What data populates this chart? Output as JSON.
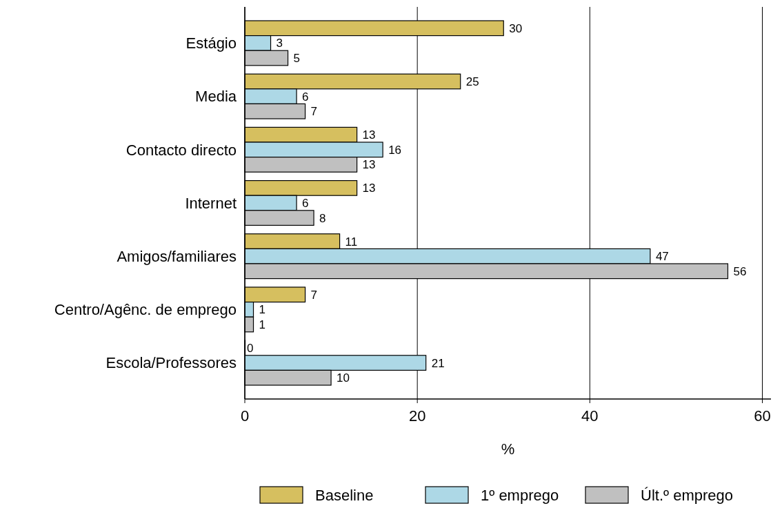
{
  "chart_data": {
    "type": "bar",
    "orientation": "horizontal",
    "categories": [
      "Estágio",
      "Media",
      "Contacto directo",
      "Internet",
      "Amigos/familiares",
      "Centro/Agênc. de emprego",
      "Escola/Professores"
    ],
    "series": [
      {
        "name": "Baseline",
        "color": "#d6bf5f",
        "values": [
          30,
          25,
          13,
          13,
          11,
          7,
          0
        ]
      },
      {
        "name": "1º emprego",
        "color": "#add8e6",
        "values": [
          3,
          6,
          16,
          6,
          47,
          1,
          21
        ]
      },
      {
        "name": "Últ.º emprego",
        "color": "#c0c0c0",
        "values": [
          5,
          7,
          13,
          8,
          56,
          1,
          10
        ]
      }
    ],
    "xlim": [
      0,
      61
    ],
    "xticks": [
      0,
      20,
      40,
      60
    ],
    "xlabel": "%",
    "grid": "x",
    "legend": "bottom",
    "data_labels": true
  }
}
